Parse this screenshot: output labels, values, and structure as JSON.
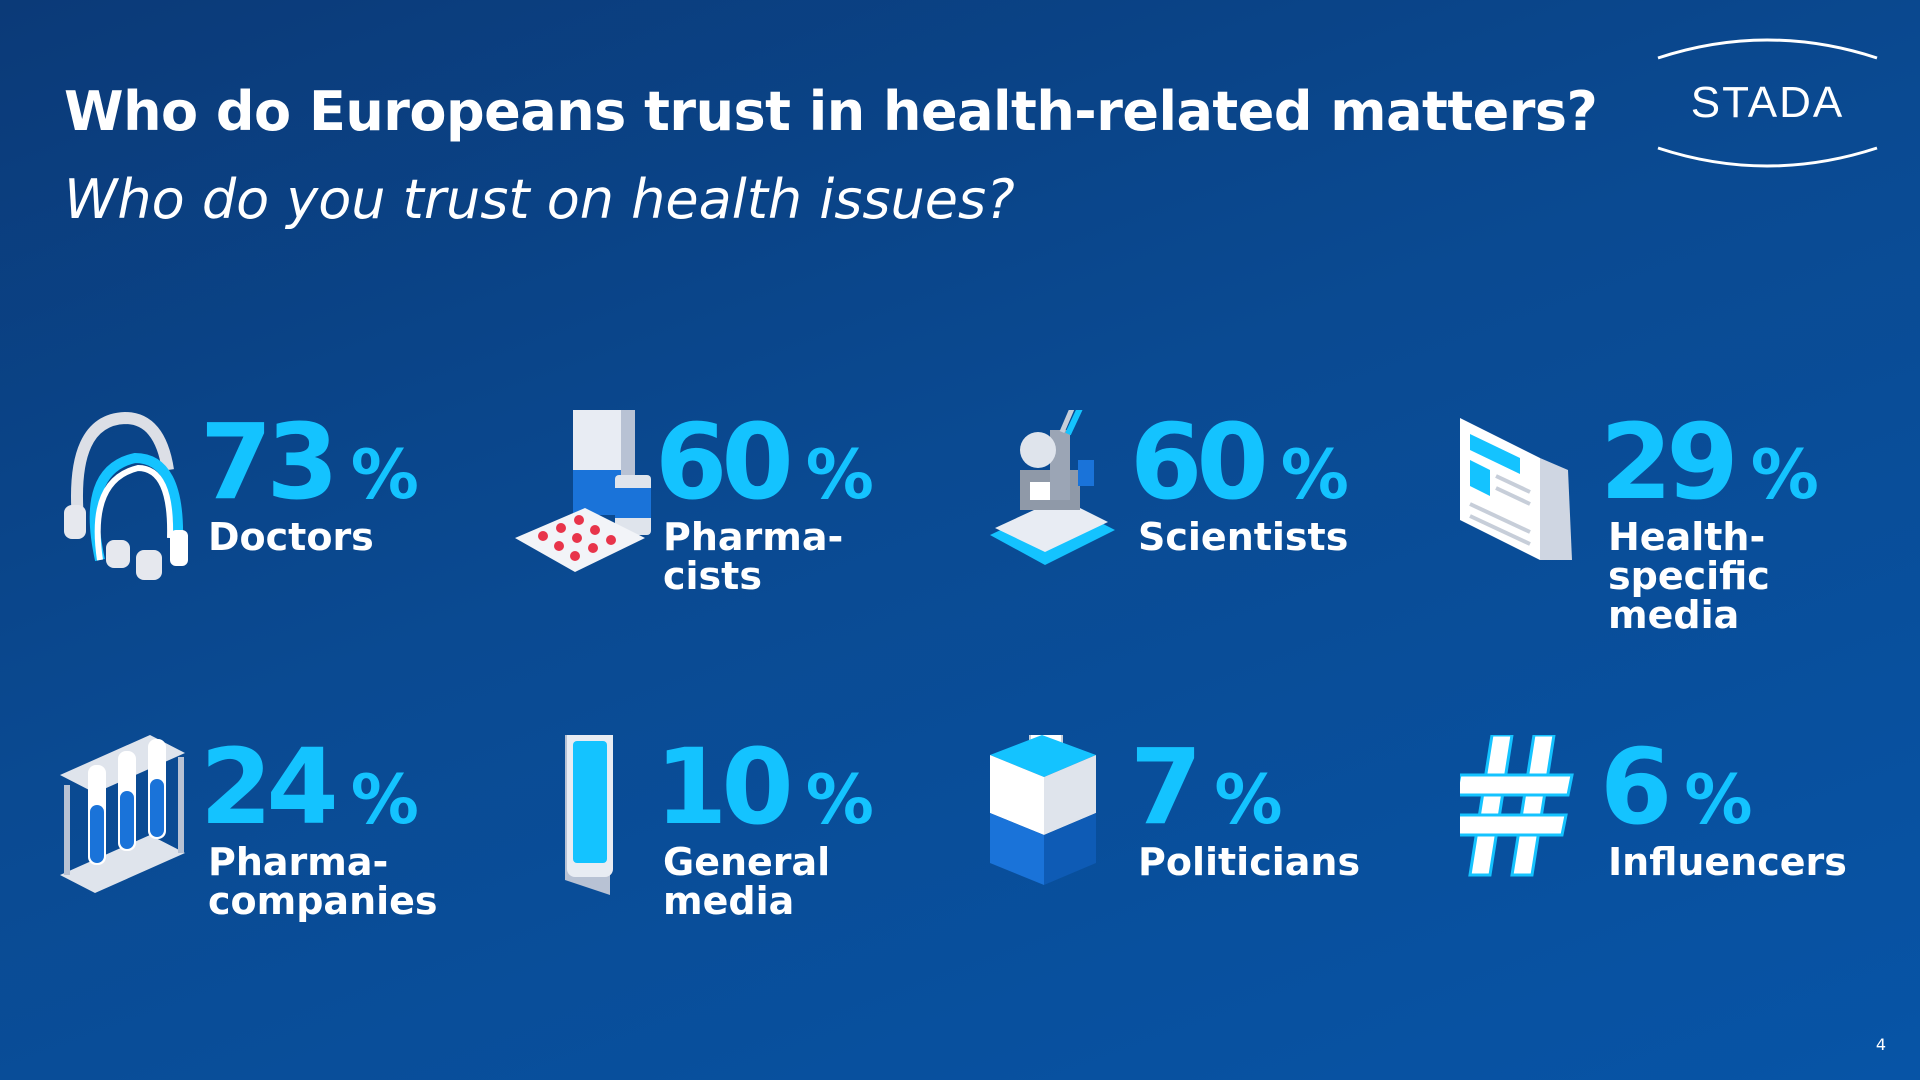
{
  "title": "Who do Europeans trust in health-related matters?",
  "subtitle": "Who do you trust on health issues?",
  "logo_text": "STADA",
  "page_number": "4",
  "colors": {
    "accent": "#14c3ff",
    "background_top": "#0b3a78",
    "background_bottom": "#0754a6"
  },
  "stats": [
    {
      "value": "73",
      "unit": "%",
      "label": "Doctors",
      "icon": "headset-icon"
    },
    {
      "value": "60",
      "unit": "%",
      "label": "Pharma-\ncists",
      "icon": "medicine-icon"
    },
    {
      "value": "60",
      "unit": "%",
      "label": "Scientists",
      "icon": "microscope-icon"
    },
    {
      "value": "29",
      "unit": "%",
      "label": "Health-\nspecific\nmedia",
      "icon": "newspaper-icon"
    },
    {
      "value": "24",
      "unit": "%",
      "label": "Pharma-\ncompanies",
      "icon": "test-tubes-icon"
    },
    {
      "value": "10",
      "unit": "%",
      "label": "General\nmedia",
      "icon": "smartphone-icon"
    },
    {
      "value": "7",
      "unit": "%",
      "label": "Politicians",
      "icon": "ballot-box-icon"
    },
    {
      "value": "6",
      "unit": "%",
      "label": "Influencers",
      "icon": "hashtag-icon"
    }
  ]
}
